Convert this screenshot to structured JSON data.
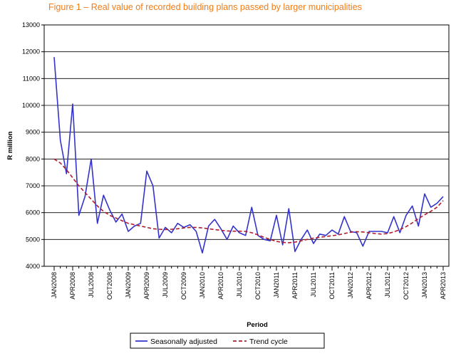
{
  "chart_data": {
    "type": "line",
    "title": "Figure 1 – Real value of recorded building plans passed by larger municipalities",
    "xlabel": "Period",
    "ylabel": "R million",
    "ylim": [
      4000,
      13000
    ],
    "yticks": [
      4000,
      5000,
      6000,
      7000,
      8000,
      9000,
      10000,
      11000,
      12000,
      13000
    ],
    "x_tick_labels": [
      "JAN2008",
      "APR2008",
      "JUL2008",
      "OCT2008",
      "JAN2009",
      "APR2009",
      "JUL2009",
      "OCT2009",
      "JAN2010",
      "APR2010",
      "JUL2010",
      "OCT2010",
      "JAN2011",
      "APR2011",
      "JUL2011",
      "OCT2011",
      "JAN2012",
      "APR2012",
      "JUL2012",
      "OCT2012",
      "JAN2013",
      "APR2013"
    ],
    "legend": {
      "position": "bottom"
    },
    "colors": {
      "seasonally_adjusted": "#3333cc",
      "trend_cycle": "#b01c2e",
      "title": "#f07d1a"
    },
    "series": [
      {
        "name": "Seasonally adjusted",
        "style": "solid",
        "values": [
          11800,
          8700,
          7450,
          10050,
          5900,
          6600,
          8000,
          5600,
          6650,
          6100,
          5650,
          5950,
          5300,
          5500,
          5600,
          7550,
          7000,
          5050,
          5450,
          5250,
          5600,
          5450,
          5550,
          5300,
          4500,
          5500,
          5750,
          5400,
          5000,
          5500,
          5250,
          5150,
          6200,
          5150,
          5000,
          4950,
          5900,
          4800,
          6150,
          4550,
          5000,
          5350,
          4850,
          5200,
          5150,
          5350,
          5200,
          5850,
          5300,
          5250,
          4750,
          5300,
          5300,
          5300,
          5250,
          5850,
          5250,
          5900,
          6250,
          5500,
          6700,
          6200,
          6350,
          6600
        ]
      },
      {
        "name": "Trend cycle",
        "style": "dashed",
        "values": [
          8000,
          7850,
          7600,
          7300,
          7000,
          6750,
          6500,
          6250,
          6050,
          5900,
          5800,
          5700,
          5600,
          5550,
          5500,
          5450,
          5400,
          5380,
          5370,
          5380,
          5400,
          5430,
          5450,
          5450,
          5430,
          5400,
          5370,
          5340,
          5320,
          5310,
          5310,
          5300,
          5250,
          5170,
          5080,
          5000,
          4930,
          4890,
          4880,
          4900,
          4950,
          5000,
          5050,
          5080,
          5110,
          5140,
          5170,
          5220,
          5270,
          5290,
          5280,
          5250,
          5220,
          5200,
          5220,
          5280,
          5370,
          5480,
          5620,
          5780,
          5920,
          6050,
          6200,
          6450
        ]
      }
    ]
  }
}
